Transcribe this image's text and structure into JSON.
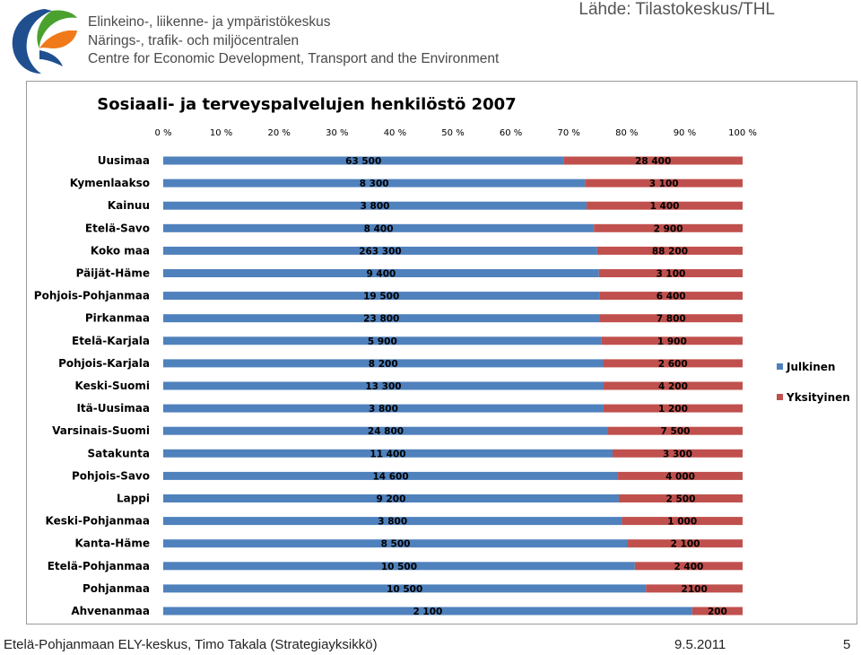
{
  "header": {
    "org_lines": [
      "Elinkeino-, liikenne- ja ympäristökeskus",
      "Närings-, trafik- och miljöcentralen",
      "Centre for Economic Development, Transport and the Environment"
    ],
    "source": "Lähde: Tilastokeskus/THL"
  },
  "footer": {
    "author": "Etelä-Pohjanmaan ELY-keskus, Timo Takala (Strategiayksikkö)",
    "date": "9.5.2011",
    "page": "5"
  },
  "colors": {
    "julkinen": "#4f81bd",
    "yksityinen": "#c0504d"
  },
  "chart_data": {
    "type": "bar",
    "orientation": "horizontal",
    "stacked": "percent",
    "title": "Sosiaali- ja terveyspalvelujen henkilöstö 2007",
    "x_ticks": [
      "0 %",
      "10 %",
      "20 %",
      "30 %",
      "40 %",
      "50 %",
      "60 %",
      "70 %",
      "80 %",
      "90 %",
      "100 %"
    ],
    "xlim": [
      0,
      100
    ],
    "legend_position": "right",
    "categories": [
      "Uusimaa",
      "Kymenlaakso",
      "Kainuu",
      "Etelä-Savo",
      "Koko maa",
      "Päijät-Häme",
      "Pohjois-Pohjanmaa",
      "Pirkanmaa",
      "Etelä-Karjala",
      "Pohjois-Karjala",
      "Keski-Suomi",
      "Itä-Uusimaa",
      "Varsinais-Suomi",
      "Satakunta",
      "Pohjois-Savo",
      "Lappi",
      "Keski-Pohjanmaa",
      "Kanta-Häme",
      "Etelä-Pohjanmaa",
      "Pohjanmaa",
      "Ahvenanmaa"
    ],
    "series": [
      {
        "name": "Julkinen",
        "values": [
          63500,
          8300,
          3800,
          8400,
          263300,
          9400,
          19500,
          23800,
          5900,
          8200,
          13300,
          3800,
          24800,
          11400,
          14600,
          9200,
          3800,
          8500,
          10500,
          10500,
          2100
        ],
        "labels": [
          "63 500",
          "8 300",
          "3 800",
          "8 400",
          "263 300",
          "9 400",
          "19 500",
          "23 800",
          "5 900",
          "8 200",
          "13 300",
          "3 800",
          "24 800",
          "11 400",
          "14 600",
          "9 200",
          "3 800",
          "8 500",
          "10 500",
          "10 500",
          "2 100"
        ]
      },
      {
        "name": "Yksityinen",
        "values": [
          28400,
          3100,
          1400,
          2900,
          88200,
          3100,
          6400,
          7800,
          1900,
          2600,
          4200,
          1200,
          7500,
          3300,
          4000,
          2500,
          1000,
          2100,
          2400,
          2100,
          200
        ],
        "labels": [
          "28 400",
          "3 100",
          "1 400",
          "2 900",
          "88 200",
          "3 100",
          "6 400",
          "7 800",
          "1 900",
          "2 600",
          "4 200",
          "1 200",
          "7 500",
          "3 300",
          "4 000",
          "2 500",
          "1 000",
          "2 100",
          "2 400",
          "2100",
          "200"
        ]
      }
    ]
  }
}
